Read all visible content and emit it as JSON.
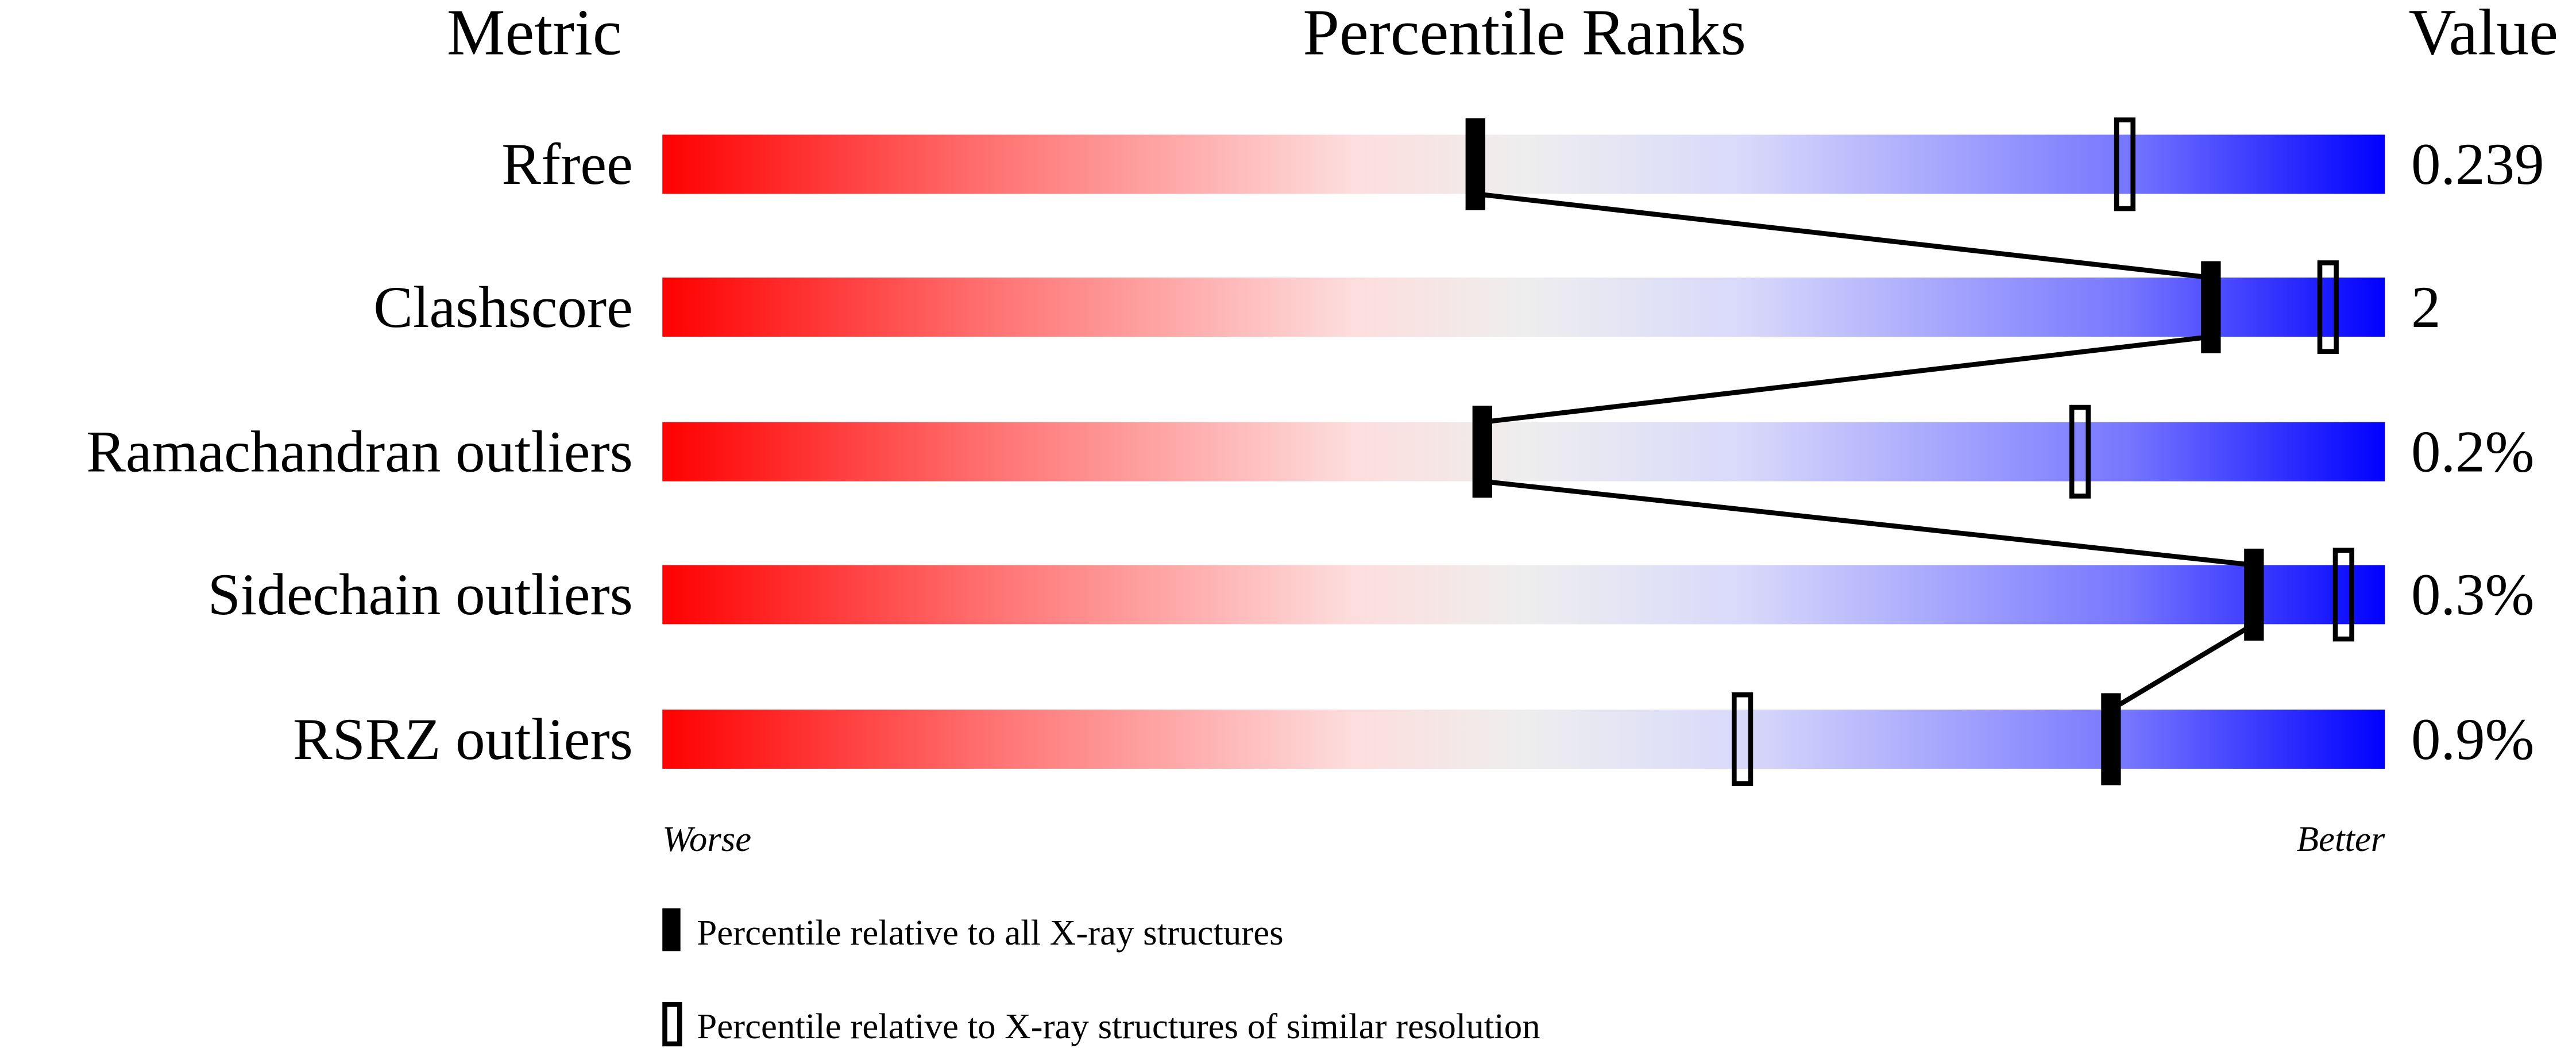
{
  "chart_data": {
    "type": "percentile-ranks",
    "headers": {
      "metric": "Metric",
      "ranks": "Percentile Ranks",
      "value": "Value"
    },
    "xlim": [
      0,
      100
    ],
    "axis_labels": {
      "left": "Worse",
      "right": "Better"
    },
    "gradient_colors": [
      "#ff0000",
      "#ff7777",
      "#fddddd",
      "#eeeeee",
      "#d8d8fb",
      "#7777ff",
      "#0000ff"
    ],
    "metrics": [
      {
        "name": "Rfree",
        "value": "0.239",
        "percentile_all": 47.2,
        "percentile_similar": 84.9
      },
      {
        "name": "Clashscore",
        "value": "2",
        "percentile_all": 89.9,
        "percentile_similar": 96.7
      },
      {
        "name": "Ramachandran outliers",
        "value": "0.2%",
        "percentile_all": 47.6,
        "percentile_similar": 82.3
      },
      {
        "name": "Sidechain outliers",
        "value": "0.3%",
        "percentile_all": 92.4,
        "percentile_similar": 97.6
      },
      {
        "name": "RSRZ outliers",
        "value": "0.9%",
        "percentile_all": 84.1,
        "percentile_similar": 62.7
      }
    ],
    "legend": {
      "filled": "Percentile relative to all X-ray structures",
      "open": "Percentile relative to X-ray structures of similar resolution"
    }
  }
}
